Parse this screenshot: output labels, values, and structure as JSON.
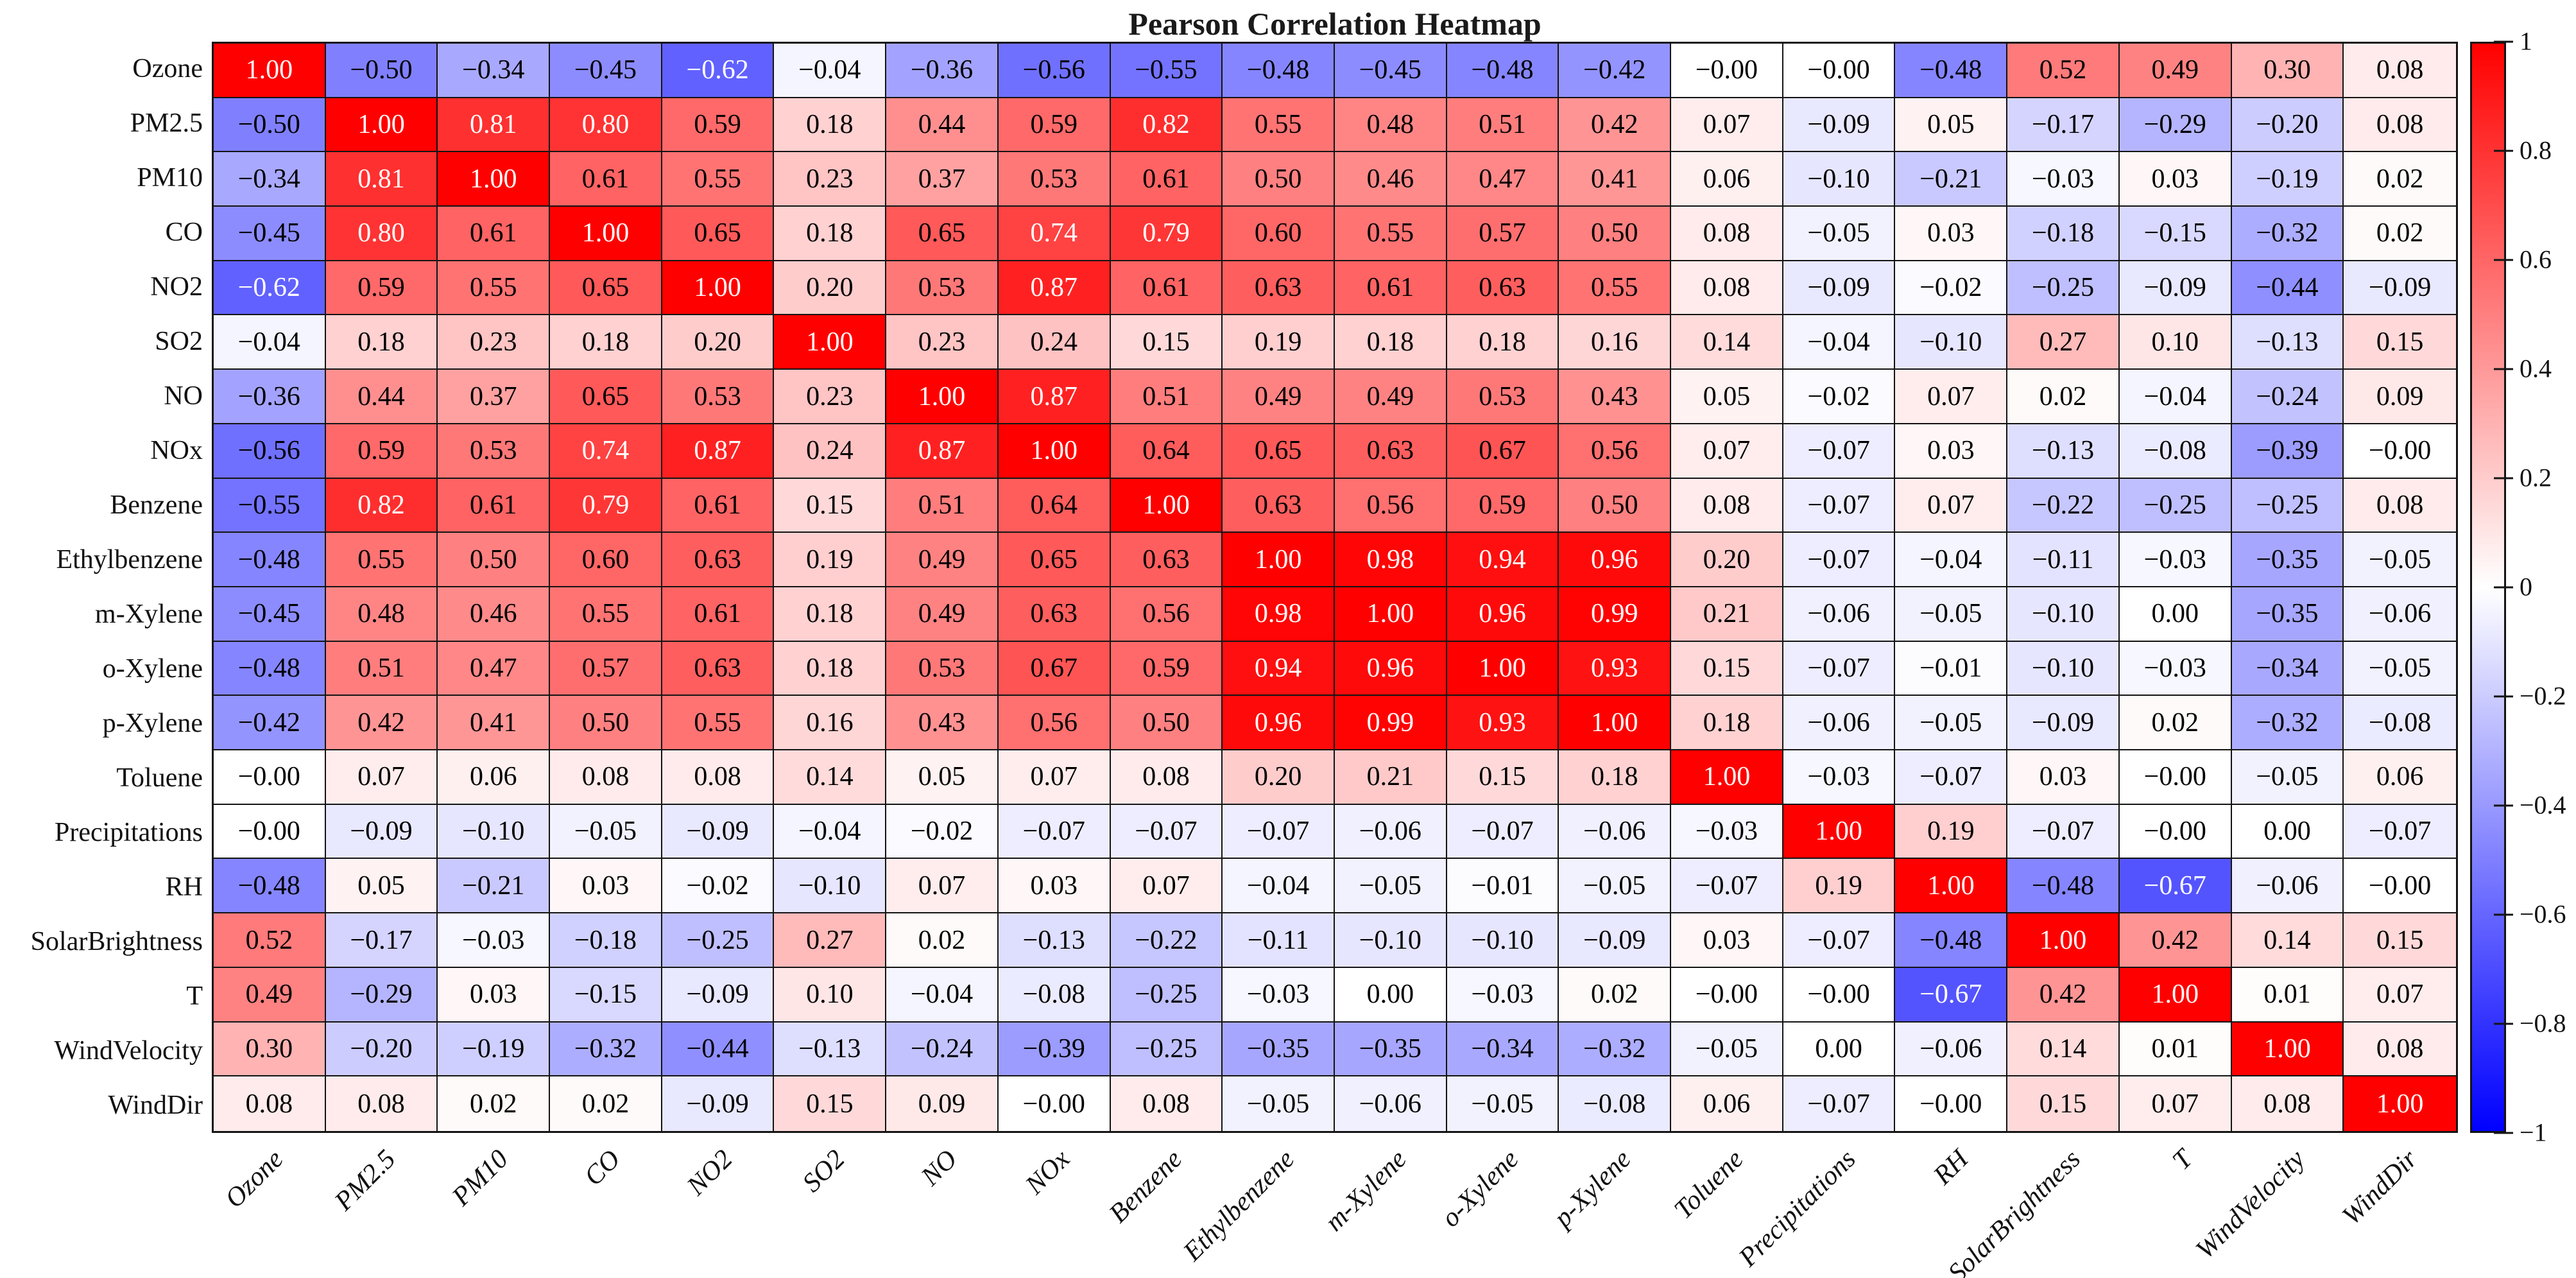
{
  "colors": {
    "background": "#ffffff",
    "grid_line": "#141414",
    "positive_end": "#ff0000",
    "zero": "#ffffff",
    "negative_end": "#0000ff",
    "cell_text_dark": "#000000",
    "cell_text_light": "#ffffff"
  },
  "chart_data": {
    "type": "heatmap",
    "title": "Pearson Correlation Heatmap",
    "colormap": "bwr (blue-white-red)",
    "vmin": -1,
    "vmax": 1,
    "grid": true,
    "x_tick_rotation_deg": 45,
    "colorbar": {
      "position": "right",
      "tick_labels": [
        "1",
        "0.8",
        "0.6",
        "0.4",
        "0.2",
        "0",
        "-0.2",
        "-0.4",
        "-0.6",
        "-0.8",
        "-1"
      ]
    },
    "variables": [
      "Ozone",
      "PM2.5",
      "PM10",
      "CO",
      "NO2",
      "SO2",
      "NO",
      "NOx",
      "Benzene",
      "Ethylbenzene",
      "m-Xylene",
      "o-Xylene",
      "p-Xylene",
      "Toluene",
      "Precipitations",
      "RH",
      "SolarBrightness",
      "T",
      "WindVelocity",
      "WindDir"
    ],
    "matrix": [
      [
        "1.00",
        "-0.50",
        "-0.34",
        "-0.45",
        "-0.62",
        "-0.04",
        "-0.36",
        "-0.56",
        "-0.55",
        "-0.48",
        "-0.45",
        "-0.48",
        "-0.42",
        "-0.00",
        "-0.00",
        "-0.48",
        "0.52",
        "0.49",
        "0.30",
        "0.08"
      ],
      [
        "-0.50",
        "1.00",
        "0.81",
        "0.80",
        "0.59",
        "0.18",
        "0.44",
        "0.59",
        "0.82",
        "0.55",
        "0.48",
        "0.51",
        "0.42",
        "0.07",
        "-0.09",
        "0.05",
        "-0.17",
        "-0.29",
        "-0.20",
        "0.08"
      ],
      [
        "-0.34",
        "0.81",
        "1.00",
        "0.61",
        "0.55",
        "0.23",
        "0.37",
        "0.53",
        "0.61",
        "0.50",
        "0.46",
        "0.47",
        "0.41",
        "0.06",
        "-0.10",
        "-0.21",
        "-0.03",
        "0.03",
        "-0.19",
        "0.02"
      ],
      [
        "-0.45",
        "0.80",
        "0.61",
        "1.00",
        "0.65",
        "0.18",
        "0.65",
        "0.74",
        "0.79",
        "0.60",
        "0.55",
        "0.57",
        "0.50",
        "0.08",
        "-0.05",
        "0.03",
        "-0.18",
        "-0.15",
        "-0.32",
        "0.02"
      ],
      [
        "-0.62",
        "0.59",
        "0.55",
        "0.65",
        "1.00",
        "0.20",
        "0.53",
        "0.87",
        "0.61",
        "0.63",
        "0.61",
        "0.63",
        "0.55",
        "0.08",
        "-0.09",
        "-0.02",
        "-0.25",
        "-0.09",
        "-0.44",
        "-0.09"
      ],
      [
        "-0.04",
        "0.18",
        "0.23",
        "0.18",
        "0.20",
        "1.00",
        "0.23",
        "0.24",
        "0.15",
        "0.19",
        "0.18",
        "0.18",
        "0.16",
        "0.14",
        "-0.04",
        "-0.10",
        "0.27",
        "0.10",
        "-0.13",
        "0.15"
      ],
      [
        "-0.36",
        "0.44",
        "0.37",
        "0.65",
        "0.53",
        "0.23",
        "1.00",
        "0.87",
        "0.51",
        "0.49",
        "0.49",
        "0.53",
        "0.43",
        "0.05",
        "-0.02",
        "0.07",
        "0.02",
        "-0.04",
        "-0.24",
        "0.09"
      ],
      [
        "-0.56",
        "0.59",
        "0.53",
        "0.74",
        "0.87",
        "0.24",
        "0.87",
        "1.00",
        "0.64",
        "0.65",
        "0.63",
        "0.67",
        "0.56",
        "0.07",
        "-0.07",
        "0.03",
        "-0.13",
        "-0.08",
        "-0.39",
        "-0.00"
      ],
      [
        "-0.55",
        "0.82",
        "0.61",
        "0.79",
        "0.61",
        "0.15",
        "0.51",
        "0.64",
        "1.00",
        "0.63",
        "0.56",
        "0.59",
        "0.50",
        "0.08",
        "-0.07",
        "0.07",
        "-0.22",
        "-0.25",
        "-0.25",
        "0.08"
      ],
      [
        "-0.48",
        "0.55",
        "0.50",
        "0.60",
        "0.63",
        "0.19",
        "0.49",
        "0.65",
        "0.63",
        "1.00",
        "0.98",
        "0.94",
        "0.96",
        "0.20",
        "-0.07",
        "-0.04",
        "-0.11",
        "-0.03",
        "-0.35",
        "-0.05"
      ],
      [
        "-0.45",
        "0.48",
        "0.46",
        "0.55",
        "0.61",
        "0.18",
        "0.49",
        "0.63",
        "0.56",
        "0.98",
        "1.00",
        "0.96",
        "0.99",
        "0.21",
        "-0.06",
        "-0.05",
        "-0.10",
        "0.00",
        "-0.35",
        "-0.06"
      ],
      [
        "-0.48",
        "0.51",
        "0.47",
        "0.57",
        "0.63",
        "0.18",
        "0.53",
        "0.67",
        "0.59",
        "0.94",
        "0.96",
        "1.00",
        "0.93",
        "0.15",
        "-0.07",
        "-0.01",
        "-0.10",
        "-0.03",
        "-0.34",
        "-0.05"
      ],
      [
        "-0.42",
        "0.42",
        "0.41",
        "0.50",
        "0.55",
        "0.16",
        "0.43",
        "0.56",
        "0.50",
        "0.96",
        "0.99",
        "0.93",
        "1.00",
        "0.18",
        "-0.06",
        "-0.05",
        "-0.09",
        "0.02",
        "-0.32",
        "-0.08"
      ],
      [
        "-0.00",
        "0.07",
        "0.06",
        "0.08",
        "0.08",
        "0.14",
        "0.05",
        "0.07",
        "0.08",
        "0.20",
        "0.21",
        "0.15",
        "0.18",
        "1.00",
        "-0.03",
        "-0.07",
        "0.03",
        "-0.00",
        "-0.05",
        "0.06"
      ],
      [
        "-0.00",
        "-0.09",
        "-0.10",
        "-0.05",
        "-0.09",
        "-0.04",
        "-0.02",
        "-0.07",
        "-0.07",
        "-0.07",
        "-0.06",
        "-0.07",
        "-0.06",
        "-0.03",
        "1.00",
        "0.19",
        "-0.07",
        "-0.00",
        "0.00",
        "-0.07"
      ],
      [
        "-0.48",
        "0.05",
        "-0.21",
        "0.03",
        "-0.02",
        "-0.10",
        "0.07",
        "0.03",
        "0.07",
        "-0.04",
        "-0.05",
        "-0.01",
        "-0.05",
        "-0.07",
        "0.19",
        "1.00",
        "-0.48",
        "-0.67",
        "-0.06",
        "-0.00"
      ],
      [
        "0.52",
        "-0.17",
        "-0.03",
        "-0.18",
        "-0.25",
        "0.27",
        "0.02",
        "-0.13",
        "-0.22",
        "-0.11",
        "-0.10",
        "-0.10",
        "-0.09",
        "0.03",
        "-0.07",
        "-0.48",
        "1.00",
        "0.42",
        "0.14",
        "0.15"
      ],
      [
        "0.49",
        "-0.29",
        "0.03",
        "-0.15",
        "-0.09",
        "0.10",
        "-0.04",
        "-0.08",
        "-0.25",
        "-0.03",
        "0.00",
        "-0.03",
        "0.02",
        "-0.00",
        "-0.00",
        "-0.67",
        "0.42",
        "1.00",
        "0.01",
        "0.07"
      ],
      [
        "0.30",
        "-0.20",
        "-0.19",
        "-0.32",
        "-0.44",
        "-0.13",
        "-0.24",
        "-0.39",
        "-0.25",
        "-0.35",
        "-0.35",
        "-0.34",
        "-0.32",
        "-0.05",
        "0.00",
        "-0.06",
        "0.14",
        "0.01",
        "1.00",
        "0.08"
      ],
      [
        "0.08",
        "0.08",
        "0.02",
        "0.02",
        "-0.09",
        "0.15",
        "0.09",
        "-0.00",
        "0.08",
        "-0.05",
        "-0.06",
        "-0.05",
        "-0.08",
        "0.06",
        "-0.07",
        "-0.00",
        "0.15",
        "0.07",
        "0.08",
        "1.00"
      ]
    ]
  }
}
